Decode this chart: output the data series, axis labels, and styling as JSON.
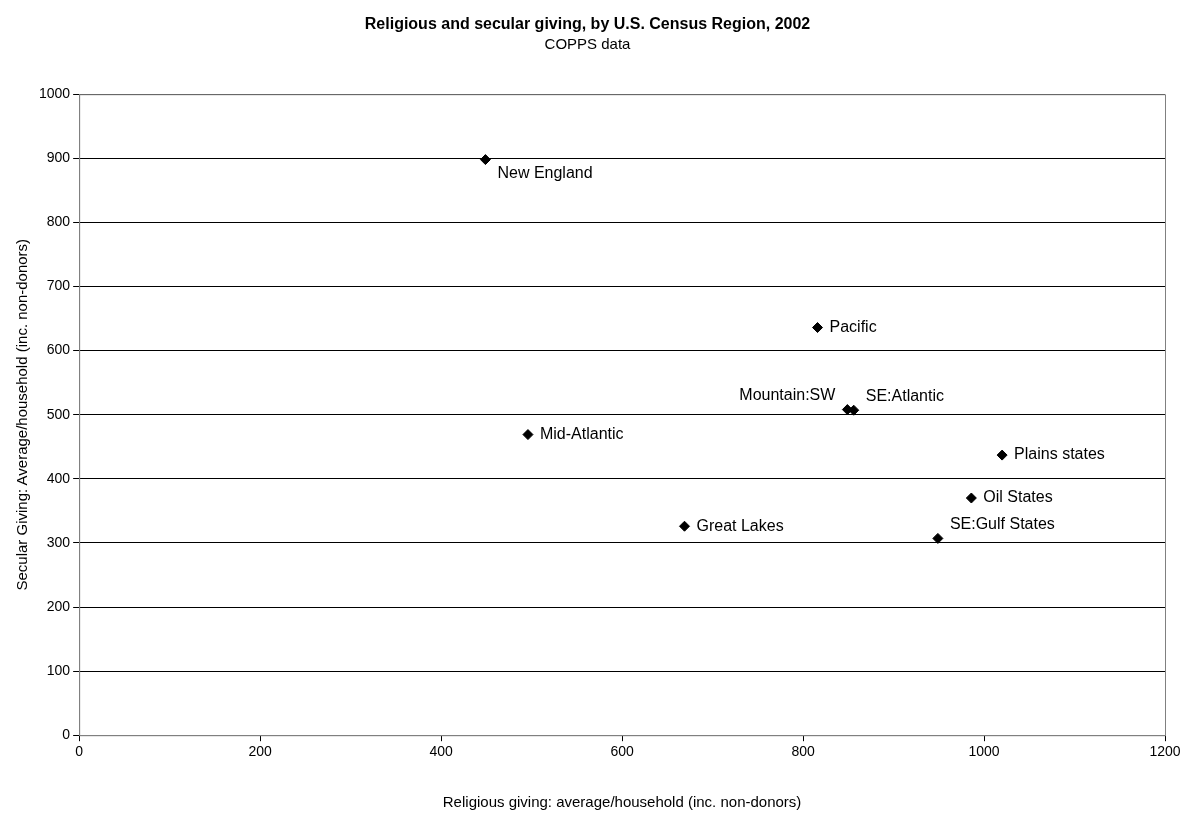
{
  "chart_data": {
    "type": "scatter",
    "title": "Religious and secular giving, by U.S. Census Region, 2002",
    "subtitle": "COPPS data",
    "xlabel": "Religious giving: average/household (inc. non-donors)",
    "ylabel": "Secular Giving: Average/household (inc. non-donors)",
    "series": [
      {
        "color": "#000000",
        "x": [
          449,
          496,
          669,
          816,
          849,
          856,
          1020,
          986,
          949
        ],
        "values": [
          898,
          469,
          326,
          636,
          508,
          507,
          437,
          370,
          307
        ]
      }
    ],
    "annotations": [
      {
        "text": "New England",
        "x": 449,
        "y": 898
      },
      {
        "text": "Mid-Atlantic",
        "x": 496,
        "y": 469
      },
      {
        "text": "Great Lakes",
        "x": 669,
        "y": 326
      },
      {
        "text": "Pacific",
        "x": 816,
        "y": 636
      },
      {
        "text": "Mountain:SW",
        "x": 849,
        "y": 508
      },
      {
        "text": "SE:Atlantic",
        "x": 856,
        "y": 507
      },
      {
        "text": "Plains states",
        "x": 1020,
        "y": 437
      },
      {
        "text": "Oil States",
        "x": 986,
        "y": 370
      },
      {
        "text": "SE:Gulf States",
        "x": 949,
        "y": 307
      }
    ],
    "xlim": [
      0,
      1200
    ],
    "xticks": [
      0,
      200,
      400,
      600,
      800,
      1000,
      1200
    ],
    "ylim": [
      0,
      1000
    ],
    "yticks": [
      0,
      100,
      200,
      300,
      400,
      500,
      600,
      700,
      800,
      900,
      1000
    ],
    "grid": "y",
    "legend": false,
    "marker": "diamond"
  }
}
